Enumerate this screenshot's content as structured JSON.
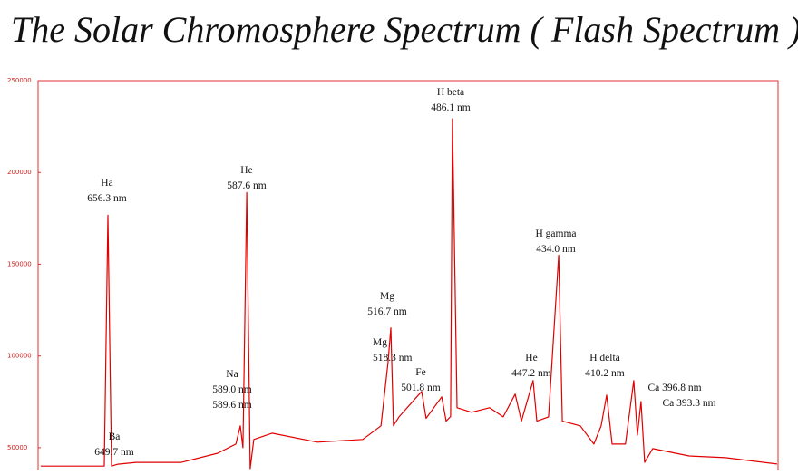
{
  "chart_data": {
    "type": "line",
    "title": "The Solar Chromosphere Spectrum ( Flash Spectrum )",
    "x": [
      689.5,
      658.1,
      656.3,
      654.5,
      651.4,
      642.4,
      620.0,
      602.1,
      593.1,
      590.9,
      589.6,
      587.7,
      586.0,
      584.2,
      575.2,
      552.8,
      530.4,
      521.4,
      517.9,
      516.5,
      515.2,
      512.5,
      501.3,
      499.1,
      491.4,
      489.2,
      487.0,
      486.1,
      483.8,
      476.7,
      467.7,
      461.0,
      455.1,
      452.0,
      446.2,
      444.4,
      438.6,
      433.6,
      431.8,
      422.9,
      416.2,
      412.6,
      409.9,
      407.2,
      400.6,
      396.5,
      394.7,
      392.9,
      391.1,
      387.1,
      369.1,
      351.2,
      325.7
    ],
    "series": [
      {
        "color": "#e00000",
        "values": [
          40000,
          40000,
          176700,
          40000,
          41000,
          42000,
          42000,
          47000,
          52000,
          61900,
          50000,
          189100,
          38600,
          54500,
          57900,
          53000,
          54500,
          61900,
          96500,
          115300,
          62000,
          66800,
          80700,
          66000,
          77700,
          64500,
          67000,
          229200,
          71800,
          69300,
          71800,
          66800,
          79200,
          64500,
          86600,
          64500,
          66800,
          154900,
          64500,
          61900,
          52000,
          61900,
          78700,
          52000,
          52000,
          86600,
          56900,
          75200,
          42000,
          49500,
          45500,
          44600,
          41100
        ]
      }
    ],
    "xlim": [
      690.8,
      325.2
    ],
    "ylim": [
      38600,
      250000
    ],
    "yticks": [
      50000,
      100000,
      150000,
      200000,
      250000
    ],
    "annotations": [
      [
        "Ha",
        "656.3 nm"
      ],
      [
        "He",
        "587.6 nm"
      ],
      [
        "Na",
        "589.0 nm",
        "589.6 nm"
      ],
      [
        "Ba",
        "649.7 nm"
      ],
      [
        "Mg",
        "516.7 nm"
      ],
      [
        "Mg",
        "518.3 nm"
      ],
      [
        "Fe",
        "501.8 nm"
      ],
      [
        "H beta",
        "486.1 nm"
      ],
      [
        "He",
        "447.2 nm"
      ],
      [
        "H gamma",
        "434.0 nm"
      ],
      [
        "H delta",
        "410.2 nm"
      ],
      [
        "Ca 396.8 nm",
        "Ca 393.3 nm"
      ]
    ]
  }
}
